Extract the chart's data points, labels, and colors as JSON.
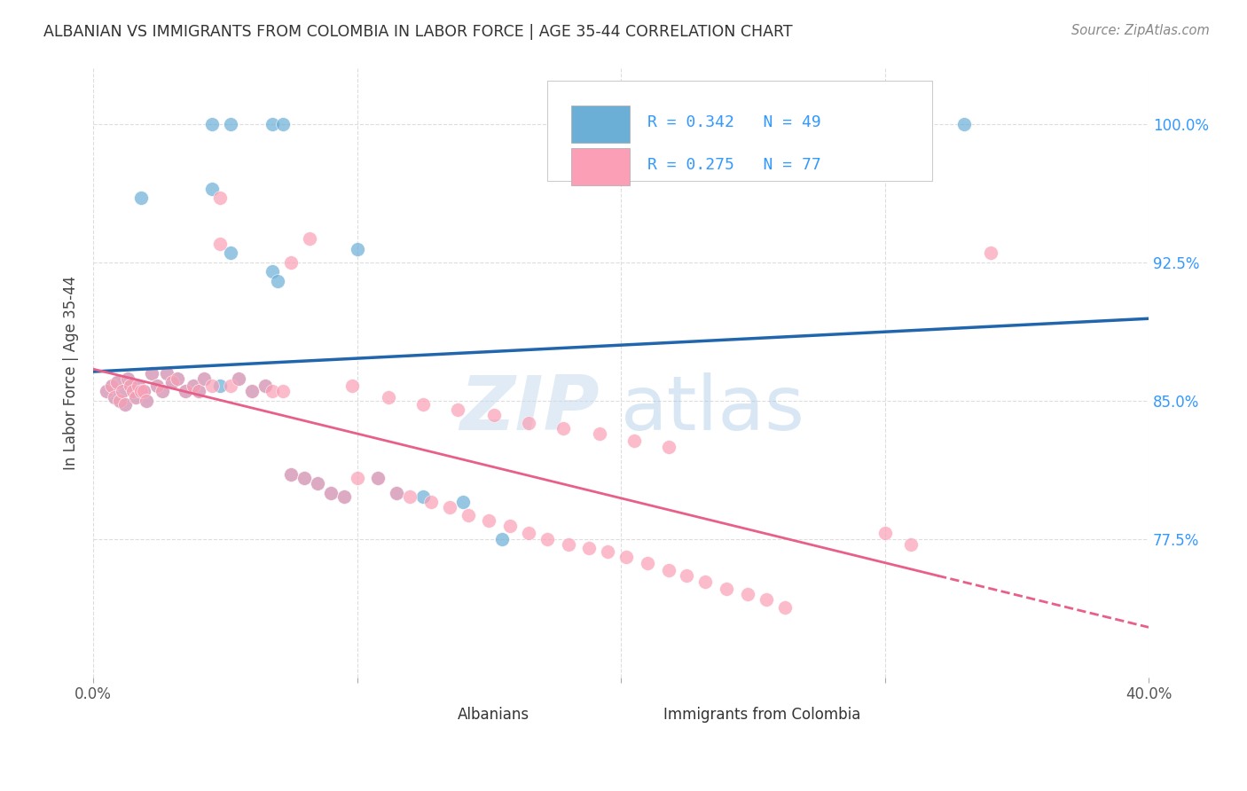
{
  "title": "ALBANIAN VS IMMIGRANTS FROM COLOMBIA IN LABOR FORCE | AGE 35-44 CORRELATION CHART",
  "source": "Source: ZipAtlas.com",
  "ylabel": "In Labor Force | Age 35-44",
  "xlim": [
    0.0,
    0.4
  ],
  "ylim": [
    0.7,
    1.03
  ],
  "albanians_R": 0.342,
  "albanians_N": 49,
  "colombia_R": 0.275,
  "colombia_N": 77,
  "blue_color": "#6baed6",
  "pink_color": "#fa9fb5",
  "blue_line_color": "#2166ac",
  "pink_line_color": "#e8608a",
  "legend_text_color": "#3399ff",
  "albanians_x": [
    0.005,
    0.007,
    0.008,
    0.009,
    0.01,
    0.011,
    0.012,
    0.013,
    0.014,
    0.015,
    0.016,
    0.017,
    0.018,
    0.019,
    0.02,
    0.022,
    0.024,
    0.026,
    0.028,
    0.03,
    0.032,
    0.035,
    0.038,
    0.04,
    0.042,
    0.045,
    0.048,
    0.052,
    0.055,
    0.06,
    0.065,
    0.068,
    0.07,
    0.075,
    0.08,
    0.085,
    0.09,
    0.095,
    0.1,
    0.108,
    0.115,
    0.125,
    0.14,
    0.155,
    0.045,
    0.052,
    0.068,
    0.072,
    0.33
  ],
  "albanians_y": [
    0.855,
    0.858,
    0.852,
    0.86,
    0.85,
    0.855,
    0.848,
    0.862,
    0.858,
    0.855,
    0.852,
    0.858,
    0.96,
    0.855,
    0.85,
    0.865,
    0.858,
    0.855,
    0.865,
    0.86,
    0.862,
    0.855,
    0.858,
    0.855,
    0.862,
    0.965,
    0.858,
    0.93,
    0.862,
    0.855,
    0.858,
    0.92,
    0.915,
    0.81,
    0.808,
    0.805,
    0.8,
    0.798,
    0.932,
    0.808,
    0.8,
    0.798,
    0.795,
    0.775,
    1.0,
    1.0,
    1.0,
    1.0,
    1.0
  ],
  "colombia_x": [
    0.005,
    0.007,
    0.008,
    0.009,
    0.01,
    0.011,
    0.012,
    0.013,
    0.014,
    0.015,
    0.016,
    0.017,
    0.018,
    0.019,
    0.02,
    0.022,
    0.024,
    0.026,
    0.028,
    0.03,
    0.032,
    0.035,
    0.038,
    0.04,
    0.042,
    0.045,
    0.048,
    0.052,
    0.055,
    0.06,
    0.065,
    0.068,
    0.072,
    0.075,
    0.08,
    0.085,
    0.09,
    0.095,
    0.1,
    0.108,
    0.115,
    0.12,
    0.128,
    0.135,
    0.142,
    0.15,
    0.158,
    0.165,
    0.172,
    0.18,
    0.188,
    0.195,
    0.202,
    0.21,
    0.218,
    0.225,
    0.232,
    0.24,
    0.248,
    0.255,
    0.262,
    0.048,
    0.075,
    0.082,
    0.098,
    0.112,
    0.125,
    0.138,
    0.152,
    0.165,
    0.178,
    0.192,
    0.205,
    0.218,
    0.3,
    0.31,
    0.34
  ],
  "colombia_y": [
    0.855,
    0.858,
    0.852,
    0.86,
    0.85,
    0.855,
    0.848,
    0.862,
    0.858,
    0.855,
    0.852,
    0.858,
    0.855,
    0.855,
    0.85,
    0.865,
    0.858,
    0.855,
    0.865,
    0.86,
    0.862,
    0.855,
    0.858,
    0.855,
    0.862,
    0.858,
    0.96,
    0.858,
    0.862,
    0.855,
    0.858,
    0.855,
    0.855,
    0.81,
    0.808,
    0.805,
    0.8,
    0.798,
    0.808,
    0.808,
    0.8,
    0.798,
    0.795,
    0.792,
    0.788,
    0.785,
    0.782,
    0.778,
    0.775,
    0.772,
    0.77,
    0.768,
    0.765,
    0.762,
    0.758,
    0.755,
    0.752,
    0.748,
    0.745,
    0.742,
    0.738,
    0.935,
    0.925,
    0.938,
    0.858,
    0.852,
    0.848,
    0.845,
    0.842,
    0.838,
    0.835,
    0.832,
    0.828,
    0.825,
    0.778,
    0.772,
    0.93
  ],
  "watermark_zip": "ZIP",
  "watermark_atlas": "atlas",
  "background_color": "#ffffff",
  "grid_color": "#dddddd"
}
